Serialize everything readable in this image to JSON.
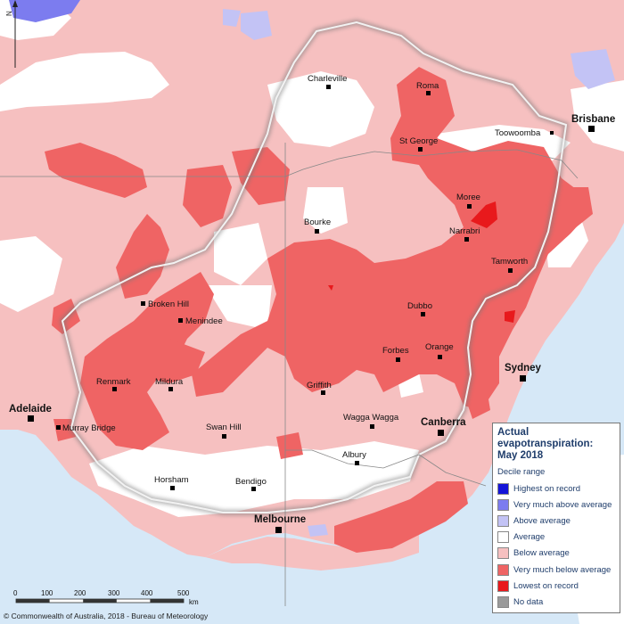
{
  "map": {
    "legend": {
      "title": "Actual evapotranspiration: May 2018",
      "subtitle": "Decile range",
      "items": [
        {
          "label": "Highest on record",
          "color": "#1414d8"
        },
        {
          "label": "Very much above average",
          "color": "#7c7cef"
        },
        {
          "label": "Above average",
          "color": "#c3c3f5"
        },
        {
          "label": "Average",
          "color": "#ffffff"
        },
        {
          "label": "Below average",
          "color": "#f6c0c0"
        },
        {
          "label": "Very much below average",
          "color": "#ef6464"
        },
        {
          "label": "Lowest on record",
          "color": "#e8191c"
        },
        {
          "label": "No data",
          "color": "#9a9a9a"
        }
      ]
    },
    "places": [
      {
        "id": "charleville",
        "name": "Charleville",
        "major": false
      },
      {
        "id": "roma",
        "name": "Roma",
        "major": false
      },
      {
        "id": "brisbane",
        "name": "Brisbane",
        "major": true
      },
      {
        "id": "toowoomba",
        "name": "Toowoomba",
        "major": false
      },
      {
        "id": "st-george",
        "name": "St George",
        "major": false
      },
      {
        "id": "moree",
        "name": "Moree",
        "major": false
      },
      {
        "id": "bourke",
        "name": "Bourke",
        "major": false
      },
      {
        "id": "narrabri",
        "name": "Narrabri",
        "major": false
      },
      {
        "id": "tamworth",
        "name": "Tamworth",
        "major": false
      },
      {
        "id": "broken-hill",
        "name": "Broken Hill",
        "major": false
      },
      {
        "id": "menindee",
        "name": "Menindee",
        "major": false
      },
      {
        "id": "dubbo",
        "name": "Dubbo",
        "major": false
      },
      {
        "id": "forbes",
        "name": "Forbes",
        "major": false
      },
      {
        "id": "orange",
        "name": "Orange",
        "major": false
      },
      {
        "id": "sydney",
        "name": "Sydney",
        "major": true
      },
      {
        "id": "renmark",
        "name": "Renmark",
        "major": false
      },
      {
        "id": "mildura",
        "name": "Mildura",
        "major": false
      },
      {
        "id": "griffith",
        "name": "Griffith",
        "major": false
      },
      {
        "id": "adelaide",
        "name": "Adelaide",
        "major": true
      },
      {
        "id": "murray-bridge",
        "name": "Murray Bridge",
        "major": false
      },
      {
        "id": "swan-hill",
        "name": "Swan Hill",
        "major": false
      },
      {
        "id": "wagga-wagga",
        "name": "Wagga Wagga",
        "major": false
      },
      {
        "id": "canberra",
        "name": "Canberra",
        "major": true
      },
      {
        "id": "albury",
        "name": "Albury",
        "major": false
      },
      {
        "id": "horsham",
        "name": "Horsham",
        "major": false
      },
      {
        "id": "bendigo",
        "name": "Bendigo",
        "major": false
      },
      {
        "id": "melbourne",
        "name": "Melbourne",
        "major": true
      }
    ],
    "scale_bar": {
      "ticks": [
        "0",
        "100",
        "200",
        "300",
        "400",
        "500"
      ],
      "unit": "km"
    },
    "north_label": "N",
    "credit": "© Commonwealth of Australia, 2018 - Bureau of Meteorology"
  }
}
